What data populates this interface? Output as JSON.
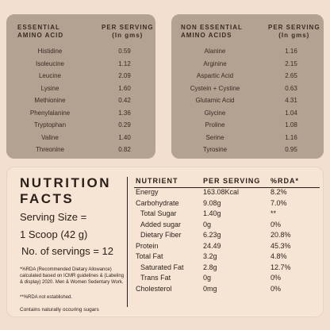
{
  "essential": {
    "head_left": [
      "ESSENTIAL",
      "AMINO ACID"
    ],
    "head_right": [
      "PER SERVING",
      "(In gms)"
    ],
    "rows": [
      {
        "name": "Histidine",
        "value": "0.59"
      },
      {
        "name": "Isoleucine",
        "value": "1.12"
      },
      {
        "name": "Leucine",
        "value": "2.09"
      },
      {
        "name": "Lysine",
        "value": "1.60"
      },
      {
        "name": "Methionine",
        "value": "0.42"
      },
      {
        "name": "Phenylalanine",
        "value": "1.36"
      },
      {
        "name": "Tryptophan",
        "value": "0.29"
      },
      {
        "name": "Valine",
        "value": "1.40"
      },
      {
        "name": "Threonine",
        "value": "0.82"
      }
    ]
  },
  "non_essential": {
    "head_left": [
      "NON ESSENTIAL",
      "AMINO ACIDS"
    ],
    "head_right": [
      "PER SERVING",
      "(In gms)"
    ],
    "rows": [
      {
        "name": "Alanine",
        "value": "1.16"
      },
      {
        "name": "Arginine",
        "value": "2.15"
      },
      {
        "name": "Aspartic Acid",
        "value": "2.65"
      },
      {
        "name": "Cystein + Cystine",
        "value": "0.63"
      },
      {
        "name": "Glutamic Acid",
        "value": "4.31"
      },
      {
        "name": "Glycine",
        "value": "1.04"
      },
      {
        "name": "Proline",
        "value": "1.08"
      },
      {
        "name": "Serine",
        "value": "1.16"
      },
      {
        "name": "Tyrosine",
        "value": "0.95"
      }
    ]
  },
  "nutrition": {
    "title_line1": "NUTRITION",
    "title_line2": "FACTS",
    "serving_size": "Serving Size =",
    "serving_scoop": "1 Scoop (42 g)",
    "servings": "No. of servings = 12",
    "footnote1": "*%RDA (Recommended Dietary Allowance) calculated based on ICMR guidelines & (Labeling & display) 2020. Men & Women Sedentary Work.",
    "footnote2": "**%RDA not established.",
    "contains": "Contains naturally occuring sugars",
    "col_nutrient": "NUTRIENT",
    "col_per_serving": "PER SERVING",
    "col_rda": "%RDA*",
    "rows": [
      {
        "name": "Energy",
        "value": "163.08Kcal",
        "rda": "8.2%",
        "indent": false
      },
      {
        "name": "Carbohydrate",
        "value": "9.08g",
        "rda": "7.0%",
        "indent": false
      },
      {
        "name": "Total Sugar",
        "value": "1.40g",
        "rda": "**",
        "indent": true
      },
      {
        "name": "Added sugar",
        "value": "0g",
        "rda": "0%",
        "indent": true
      },
      {
        "name": "Dietary Fiber",
        "value": "6.23g",
        "rda": "20.8%",
        "indent": true
      },
      {
        "name": "Protein",
        "value": "24.49",
        "rda": "45.3%",
        "indent": false
      },
      {
        "name": "Total Fat",
        "value": "3.2g",
        "rda": "4.8%",
        "indent": false
      },
      {
        "name": "Saturated Fat",
        "value": "2.8g",
        "rda": "12.7%",
        "indent": true
      },
      {
        "name": "Trans Fat",
        "value": "0g",
        "rda": "0%",
        "indent": true
      },
      {
        "name": "Cholesterol",
        "value": "0mg",
        "rda": "0%",
        "indent": false
      }
    ]
  }
}
